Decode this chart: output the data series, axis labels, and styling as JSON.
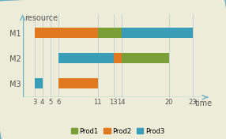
{
  "xlabel": "time",
  "ylabel": "resource",
  "background_color": "#edecd8",
  "plot_bg_color": "#edecd8",
  "border_color": "#6ab0c8",
  "xlim": [
    1.5,
    25.5
  ],
  "ylim": [
    0.45,
    3.75
  ],
  "xticks": [
    3,
    4,
    5,
    6,
    11,
    13,
    14,
    20,
    23
  ],
  "yticks": [
    1,
    2,
    3
  ],
  "yticklabels": [
    "M3",
    "M2",
    "M1"
  ],
  "bar_height": 0.42,
  "colors": {
    "Prod1": "#7a9e38",
    "Prod2": "#e07820",
    "Prod3": "#3a9db8"
  },
  "bars": [
    {
      "resource": 3,
      "start": 3,
      "end": 11,
      "product": "Prod2"
    },
    {
      "resource": 3,
      "start": 11,
      "end": 14,
      "product": "Prod1"
    },
    {
      "resource": 3,
      "start": 14,
      "end": 23,
      "product": "Prod3"
    },
    {
      "resource": 2,
      "start": 6,
      "end": 13,
      "product": "Prod3"
    },
    {
      "resource": 2,
      "start": 13,
      "end": 14,
      "product": "Prod2"
    },
    {
      "resource": 2,
      "start": 14,
      "end": 20,
      "product": "Prod1"
    },
    {
      "resource": 1,
      "start": 3,
      "end": 4,
      "product": "Prod3"
    },
    {
      "resource": 1,
      "start": 6,
      "end": 11,
      "product": "Prod2"
    }
  ],
  "legend_order": [
    "Prod1",
    "Prod2",
    "Prod3"
  ],
  "vline_color": "#b0ccd8",
  "vline_positions": [
    3,
    4,
    5,
    6,
    11,
    13,
    14,
    20,
    23
  ],
  "axis_color": "#6ab0c8",
  "tick_color": "#555555",
  "font_size": 6.5,
  "label_font_size": 7
}
